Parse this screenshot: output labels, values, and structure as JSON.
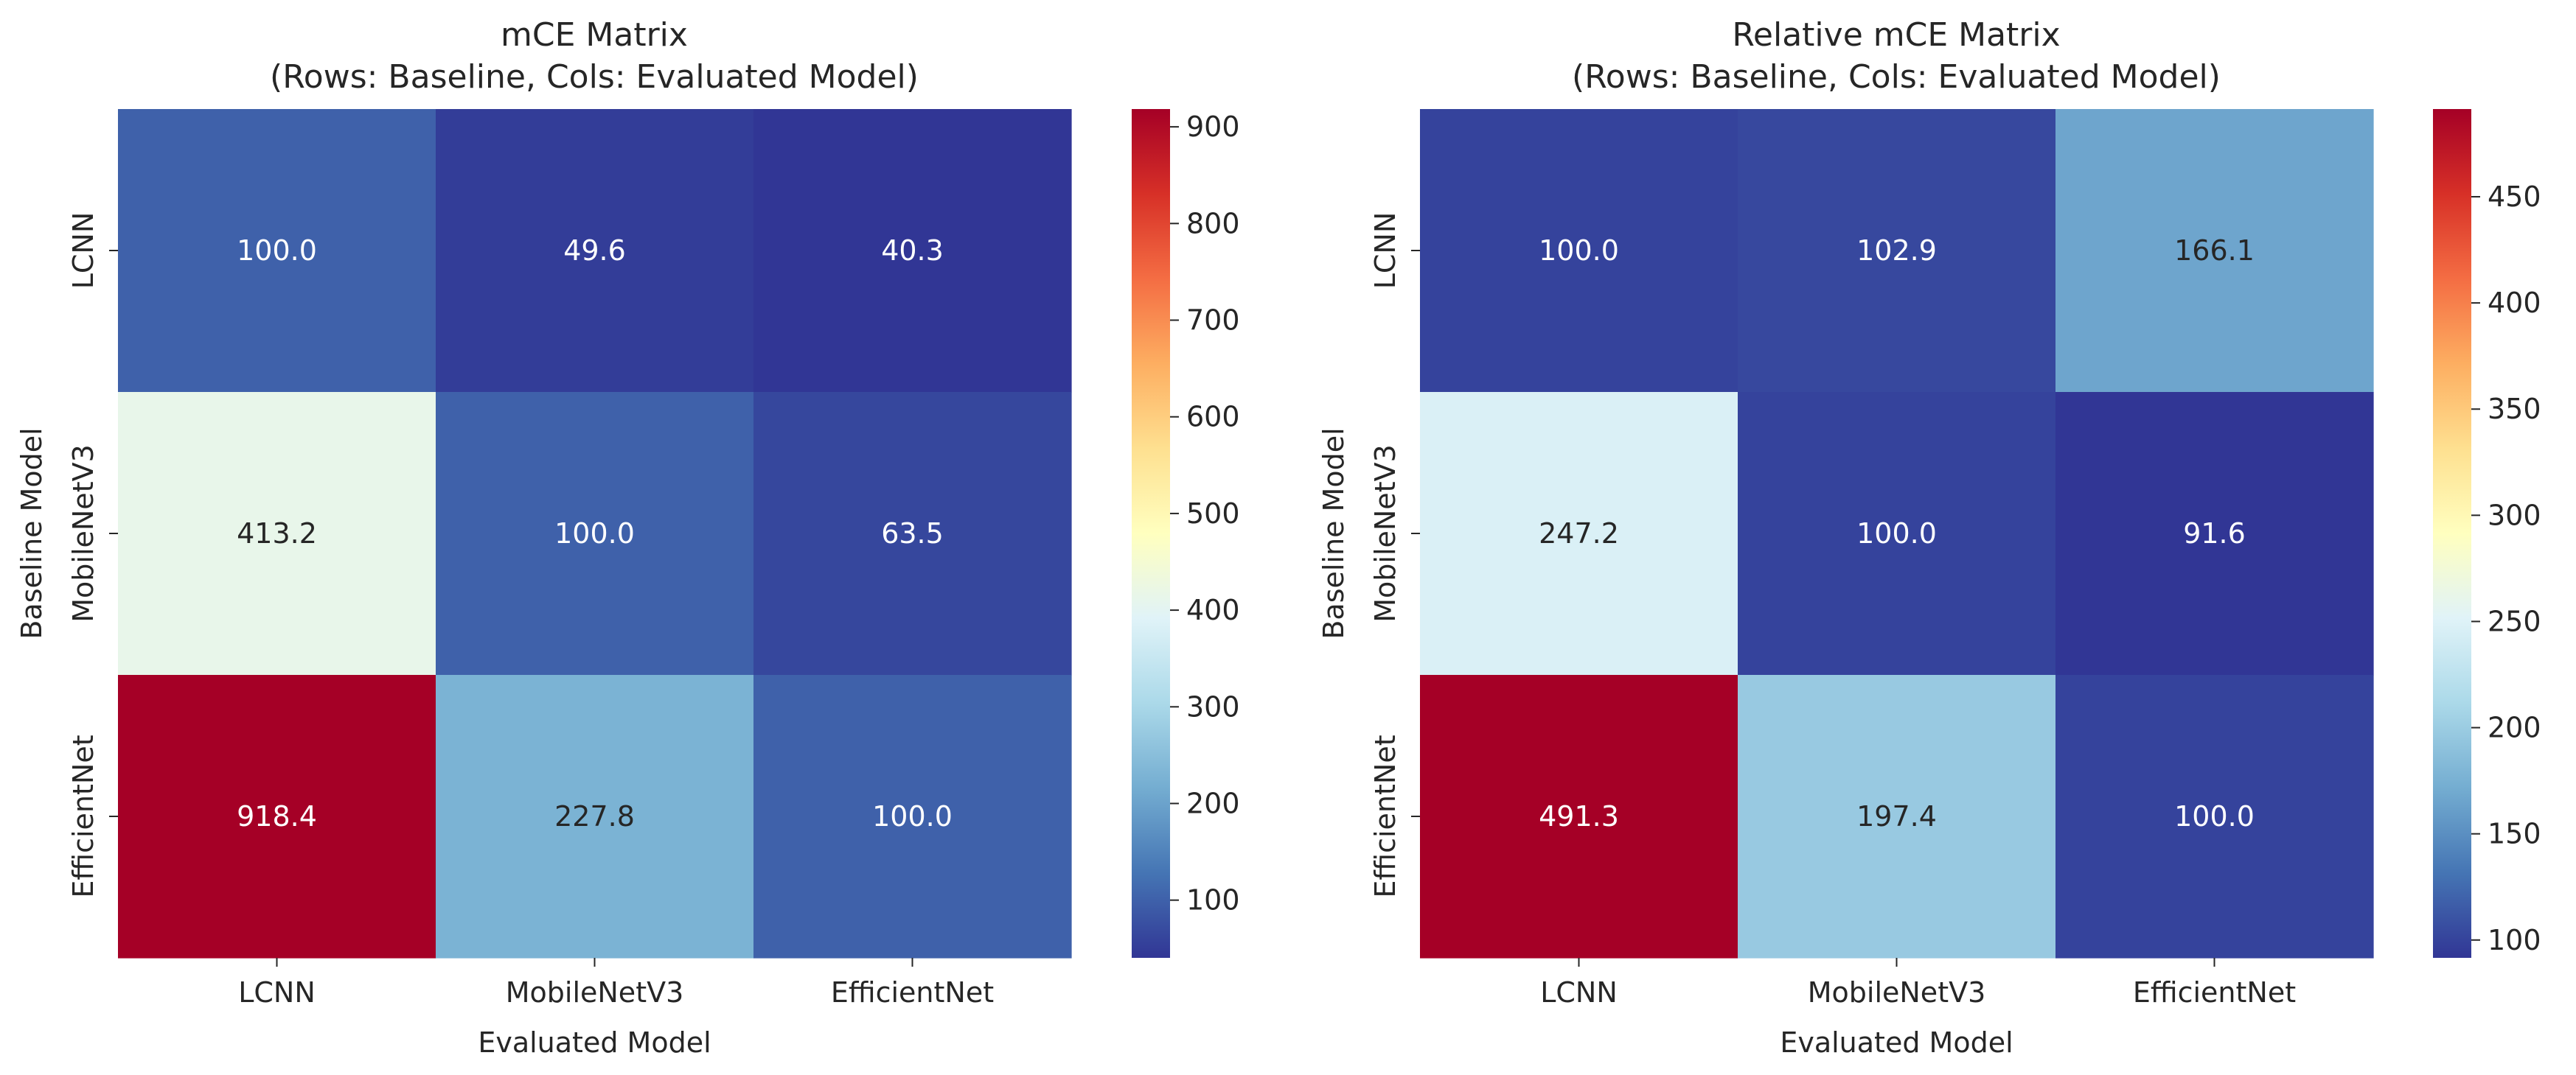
{
  "chart_data": [
    {
      "type": "heatmap",
      "title": "mCE Matrix\n(Rows: Baseline, Cols: Evaluated Model)",
      "xlabel": "Evaluated Model",
      "ylabel": "Baseline Model",
      "x_categories": [
        "LCNN",
        "MobileNetV3",
        "EfficientNet"
      ],
      "y_categories": [
        "LCNN",
        "MobileNetV3",
        "EfficientNet"
      ],
      "values": [
        [
          100.0,
          49.6,
          40.3
        ],
        [
          413.2,
          100.0,
          63.5
        ],
        [
          918.4,
          227.8,
          100.0
        ]
      ],
      "value_format": "1 decimal",
      "colormap": "RdYlBu_r",
      "vmin": 40.3,
      "vmax": 918.4,
      "colorbar_ticks": [
        100,
        200,
        300,
        400,
        500,
        600,
        700,
        800,
        900
      ],
      "colorbar_position": "right"
    },
    {
      "type": "heatmap",
      "title": "Relative mCE Matrix\n(Rows: Baseline, Cols: Evaluated Model)",
      "xlabel": "Evaluated Model",
      "ylabel": "Baseline Model",
      "x_categories": [
        "LCNN",
        "MobileNetV3",
        "EfficientNet"
      ],
      "y_categories": [
        "LCNN",
        "MobileNetV3",
        "EfficientNet"
      ],
      "values": [
        [
          100.0,
          102.9,
          166.1
        ],
        [
          247.2,
          100.0,
          91.6
        ],
        [
          491.3,
          197.4,
          100.0
        ]
      ],
      "value_format": "1 decimal",
      "colormap": "RdYlBu_r",
      "vmin": 91.6,
      "vmax": 491.3,
      "colorbar_ticks": [
        100,
        150,
        200,
        250,
        300,
        350,
        400,
        450
      ],
      "colorbar_position": "right"
    }
  ],
  "colors": {
    "colormap_stops": [
      "#313695",
      "#4575b4",
      "#74add1",
      "#abd9e9",
      "#e0f3f8",
      "#ffffbf",
      "#fee090",
      "#fdae61",
      "#f46d43",
      "#d73027",
      "#a50026"
    ],
    "text_dark": "#262626",
    "text_light": "#ffffff"
  }
}
